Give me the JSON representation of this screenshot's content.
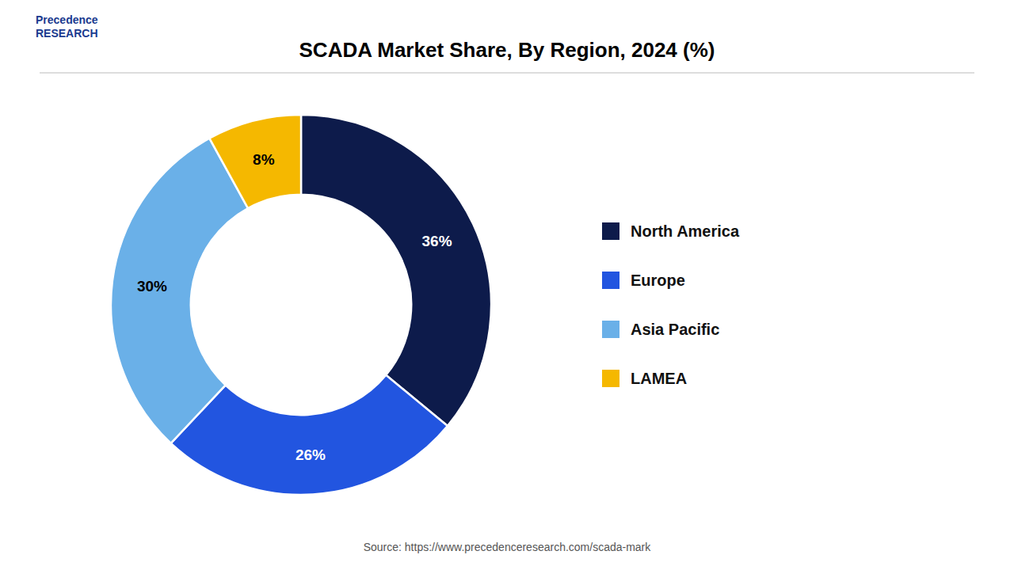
{
  "chart_data": {
    "type": "donut",
    "title": "SCADA Market Share, By Region, 2024 (%)",
    "categories": [
      "North America",
      "Europe",
      "Asia Pacific",
      "LAMEA"
    ],
    "values": [
      36,
      26,
      30,
      8
    ],
    "value_labels": [
      "36%",
      "26%",
      "30%",
      "8%"
    ],
    "colors": [
      "#0d1b4b",
      "#2255e0",
      "#6ab0e8",
      "#f5b800"
    ],
    "data_labels": true,
    "legend": "right",
    "annotations": [
      "Precedence\nRESEARCH",
      "Source: https://www.precedenceresearch.com/scada-mark"
    ]
  }
}
